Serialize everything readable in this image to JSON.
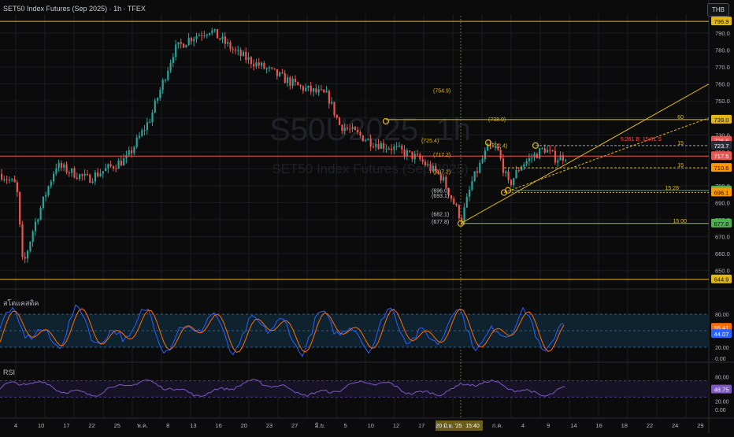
{
  "header": {
    "title": "SET50 Index Futures (Sep 2025) · 1h · TFEX",
    "currency": "THB"
  },
  "watermark": {
    "symbol": "S50U2025, 1h",
    "name": "SET50 Index Futures (Sep 2025)"
  },
  "colors": {
    "up": "#26a69a",
    "down": "#ef5350",
    "fib": "#e2b714",
    "stoch_k": "#2962ff",
    "stoch_d": "#ff6d00",
    "rsi": "#7e57c2",
    "bg": "#0b0b0c"
  },
  "price_axis": {
    "ticks": [
      "790.0",
      "780.0",
      "770.0",
      "760.0",
      "750.0",
      "740.0",
      "730.0",
      "720.0",
      "710.0",
      "700.0",
      "690.0",
      "680.0",
      "670.0",
      "660.0",
      "650.0"
    ],
    "badges": [
      {
        "text": "796.9",
        "bg": "#e2b714",
        "fg": "#111"
      },
      {
        "text": "739.0",
        "bg": "#e2b714",
        "fg": "#111"
      },
      {
        "text": "726.6",
        "bg": "#ef5350",
        "fg": "#fff"
      },
      {
        "text": "723.7",
        "bg": "#2a2e39",
        "fg": "#fff"
      },
      {
        "text": "717.5",
        "bg": "#ef5350",
        "fg": "#fff"
      },
      {
        "text": "710.6",
        "bg": "#ff9800",
        "fg": "#111"
      },
      {
        "text": "697.3",
        "bg": "#4caf50",
        "fg": "#111"
      },
      {
        "text": "696.1",
        "bg": "#ff9800",
        "fg": "#111"
      },
      {
        "text": "677.8",
        "bg": "#4caf50",
        "fg": "#111"
      },
      {
        "text": "644.9",
        "bg": "#e2b714",
        "fg": "#111"
      }
    ]
  },
  "annotations": {
    "levels": [
      "(754.9)",
      "(738.0)",
      "(725.4)",
      "(722.4)",
      "(717.2)",
      "(707.2)",
      "(696.0)",
      "(693.1)",
      "(682.1)",
      "(677.8)"
    ],
    "line_labels": [
      "60",
      "15",
      "15",
      "15 00",
      "15:28",
      "5:261 B: 15:61 S"
    ]
  },
  "stoch": {
    "title": "สโตแคสติค",
    "ticks": [
      "80.00",
      "20.00",
      "0.00"
    ],
    "badges": [
      {
        "text": "55.41",
        "bg": "#ff6d00"
      },
      {
        "text": "44.07",
        "bg": "#2962ff"
      }
    ]
  },
  "rsi": {
    "title": "RSI",
    "ticks": [
      "80.00",
      "20.00",
      "0.00"
    ],
    "badges": [
      {
        "text": "48.75",
        "bg": "#7e57c2"
      }
    ]
  },
  "time_axis": {
    "labels": [
      "4",
      "10",
      "17",
      "22",
      "25",
      "พ.ค.",
      "8",
      "13",
      "16",
      "20",
      "23",
      "27",
      "มิ.ย.",
      "5",
      "10",
      "12",
      "17",
      "23",
      "26",
      "ก.ค.",
      "4",
      "9",
      "14",
      "16",
      "18",
      "22",
      "24",
      "29"
    ],
    "cursor_date": "20 มิ.ย. '25",
    "cursor_time": "15:40"
  }
}
